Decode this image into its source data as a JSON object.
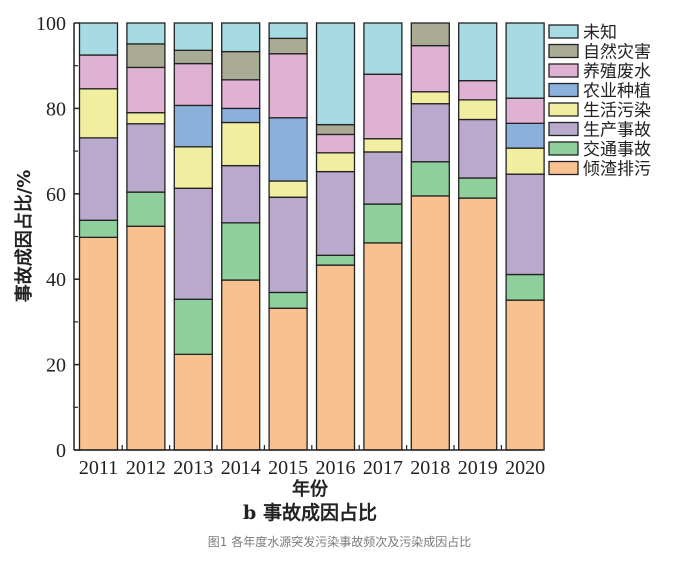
{
  "chart_data": {
    "type": "bar",
    "stacked": true,
    "title": "b 事故成因占比",
    "xlabel": "年份",
    "ylabel": "事故成因占比/%",
    "ylim": [
      0,
      100
    ],
    "yticks": [
      0,
      20,
      40,
      60,
      80,
      100
    ],
    "grid": false,
    "legend_position": "right",
    "categories": [
      "2011",
      "2012",
      "2013",
      "2014",
      "2015",
      "2016",
      "2017",
      "2018",
      "2019",
      "2020"
    ],
    "series": [
      {
        "name": "倾渣排污",
        "color": "#F9C18F",
        "values": [
          49.8,
          52.4,
          22.4,
          39.8,
          33.2,
          43.3,
          48.5,
          59.5,
          59.0,
          35.1
        ]
      },
      {
        "name": "交通事故",
        "color": "#8ECF9C",
        "values": [
          4.0,
          8.0,
          12.9,
          13.4,
          3.7,
          2.3,
          9.1,
          8.0,
          4.7,
          6.0
        ]
      },
      {
        "name": "生产事故",
        "color": "#B8A9CD",
        "values": [
          19.3,
          16.0,
          26.0,
          13.4,
          22.3,
          19.6,
          12.2,
          13.6,
          13.7,
          23.5
        ]
      },
      {
        "name": "生活污染",
        "color": "#F1EEA0",
        "values": [
          11.5,
          2.6,
          9.7,
          10.1,
          3.8,
          4.4,
          3.1,
          2.8,
          4.6,
          6.1
        ]
      },
      {
        "name": "农业种植",
        "color": "#8BB0DC",
        "values": [
          0,
          0,
          9.7,
          3.3,
          14.8,
          0,
          0,
          0,
          0,
          5.8
        ]
      },
      {
        "name": "养殖废水",
        "color": "#DFB1D3",
        "values": [
          7.9,
          10.6,
          9.8,
          6.7,
          15.0,
          4.3,
          15.1,
          10.8,
          4.5,
          5.9
        ]
      },
      {
        "name": "自然灾害",
        "color": "#A9AB94",
        "values": [
          0,
          5.5,
          3.1,
          6.6,
          3.6,
          2.3,
          0,
          5.3,
          0,
          0
        ]
      },
      {
        "name": "未知",
        "color": "#A6DBE4",
        "values": [
          7.5,
          4.9,
          6.4,
          6.7,
          3.6,
          23.8,
          12.0,
          0,
          13.5,
          17.6
        ]
      }
    ],
    "legend_order": [
      "未知",
      "自然灾害",
      "养殖废水",
      "农业种植",
      "生活污染",
      "生产事故",
      "交通事故",
      "倾渣排污"
    ]
  },
  "caption": "图1 各年度水源突发污染事故频次及污染成因占比"
}
